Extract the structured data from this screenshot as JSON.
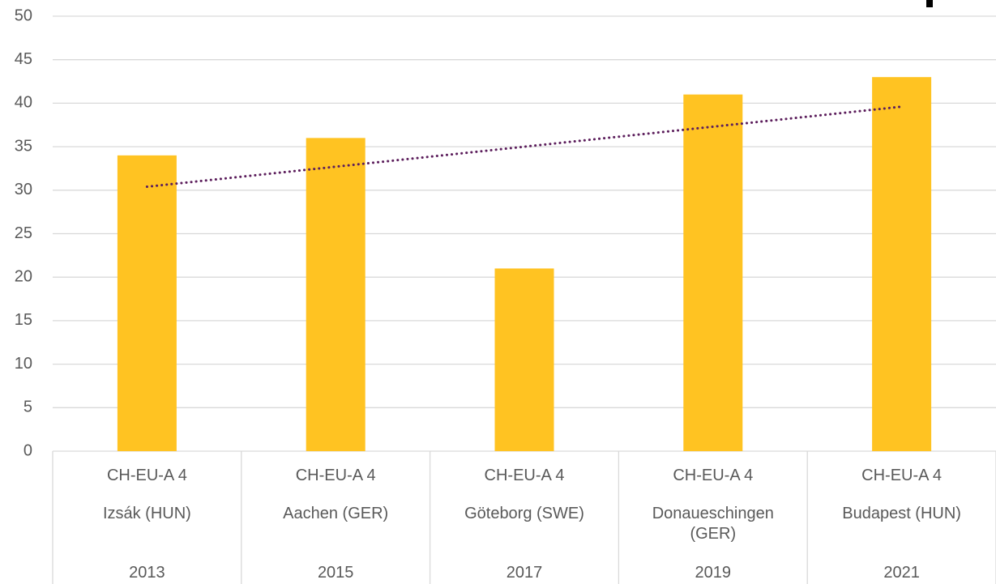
{
  "chart_data": {
    "type": "bar",
    "categories": [
      [
        "CH-EU-A 4",
        "Izsák (HUN)",
        "2013"
      ],
      [
        "CH-EU-A 4",
        "Aachen (GER)",
        "2015"
      ],
      [
        "CH-EU-A 4",
        "Göteborg (SWE)",
        "2017"
      ],
      [
        "CH-EU-A 4",
        "Donaueschingen (GER)",
        "2019"
      ],
      [
        "CH-EU-A 4",
        "Budapest (HUN)",
        "2021"
      ]
    ],
    "values": [
      34,
      36,
      21,
      41,
      43
    ],
    "color": "#ffc322",
    "trendline": {
      "type": "linear",
      "color": "#5c1e5c"
    },
    "ylim": [
      0,
      50
    ],
    "yticks": [
      0,
      5,
      10,
      15,
      20,
      25,
      30,
      35,
      40,
      45,
      50
    ],
    "grid": true
  }
}
